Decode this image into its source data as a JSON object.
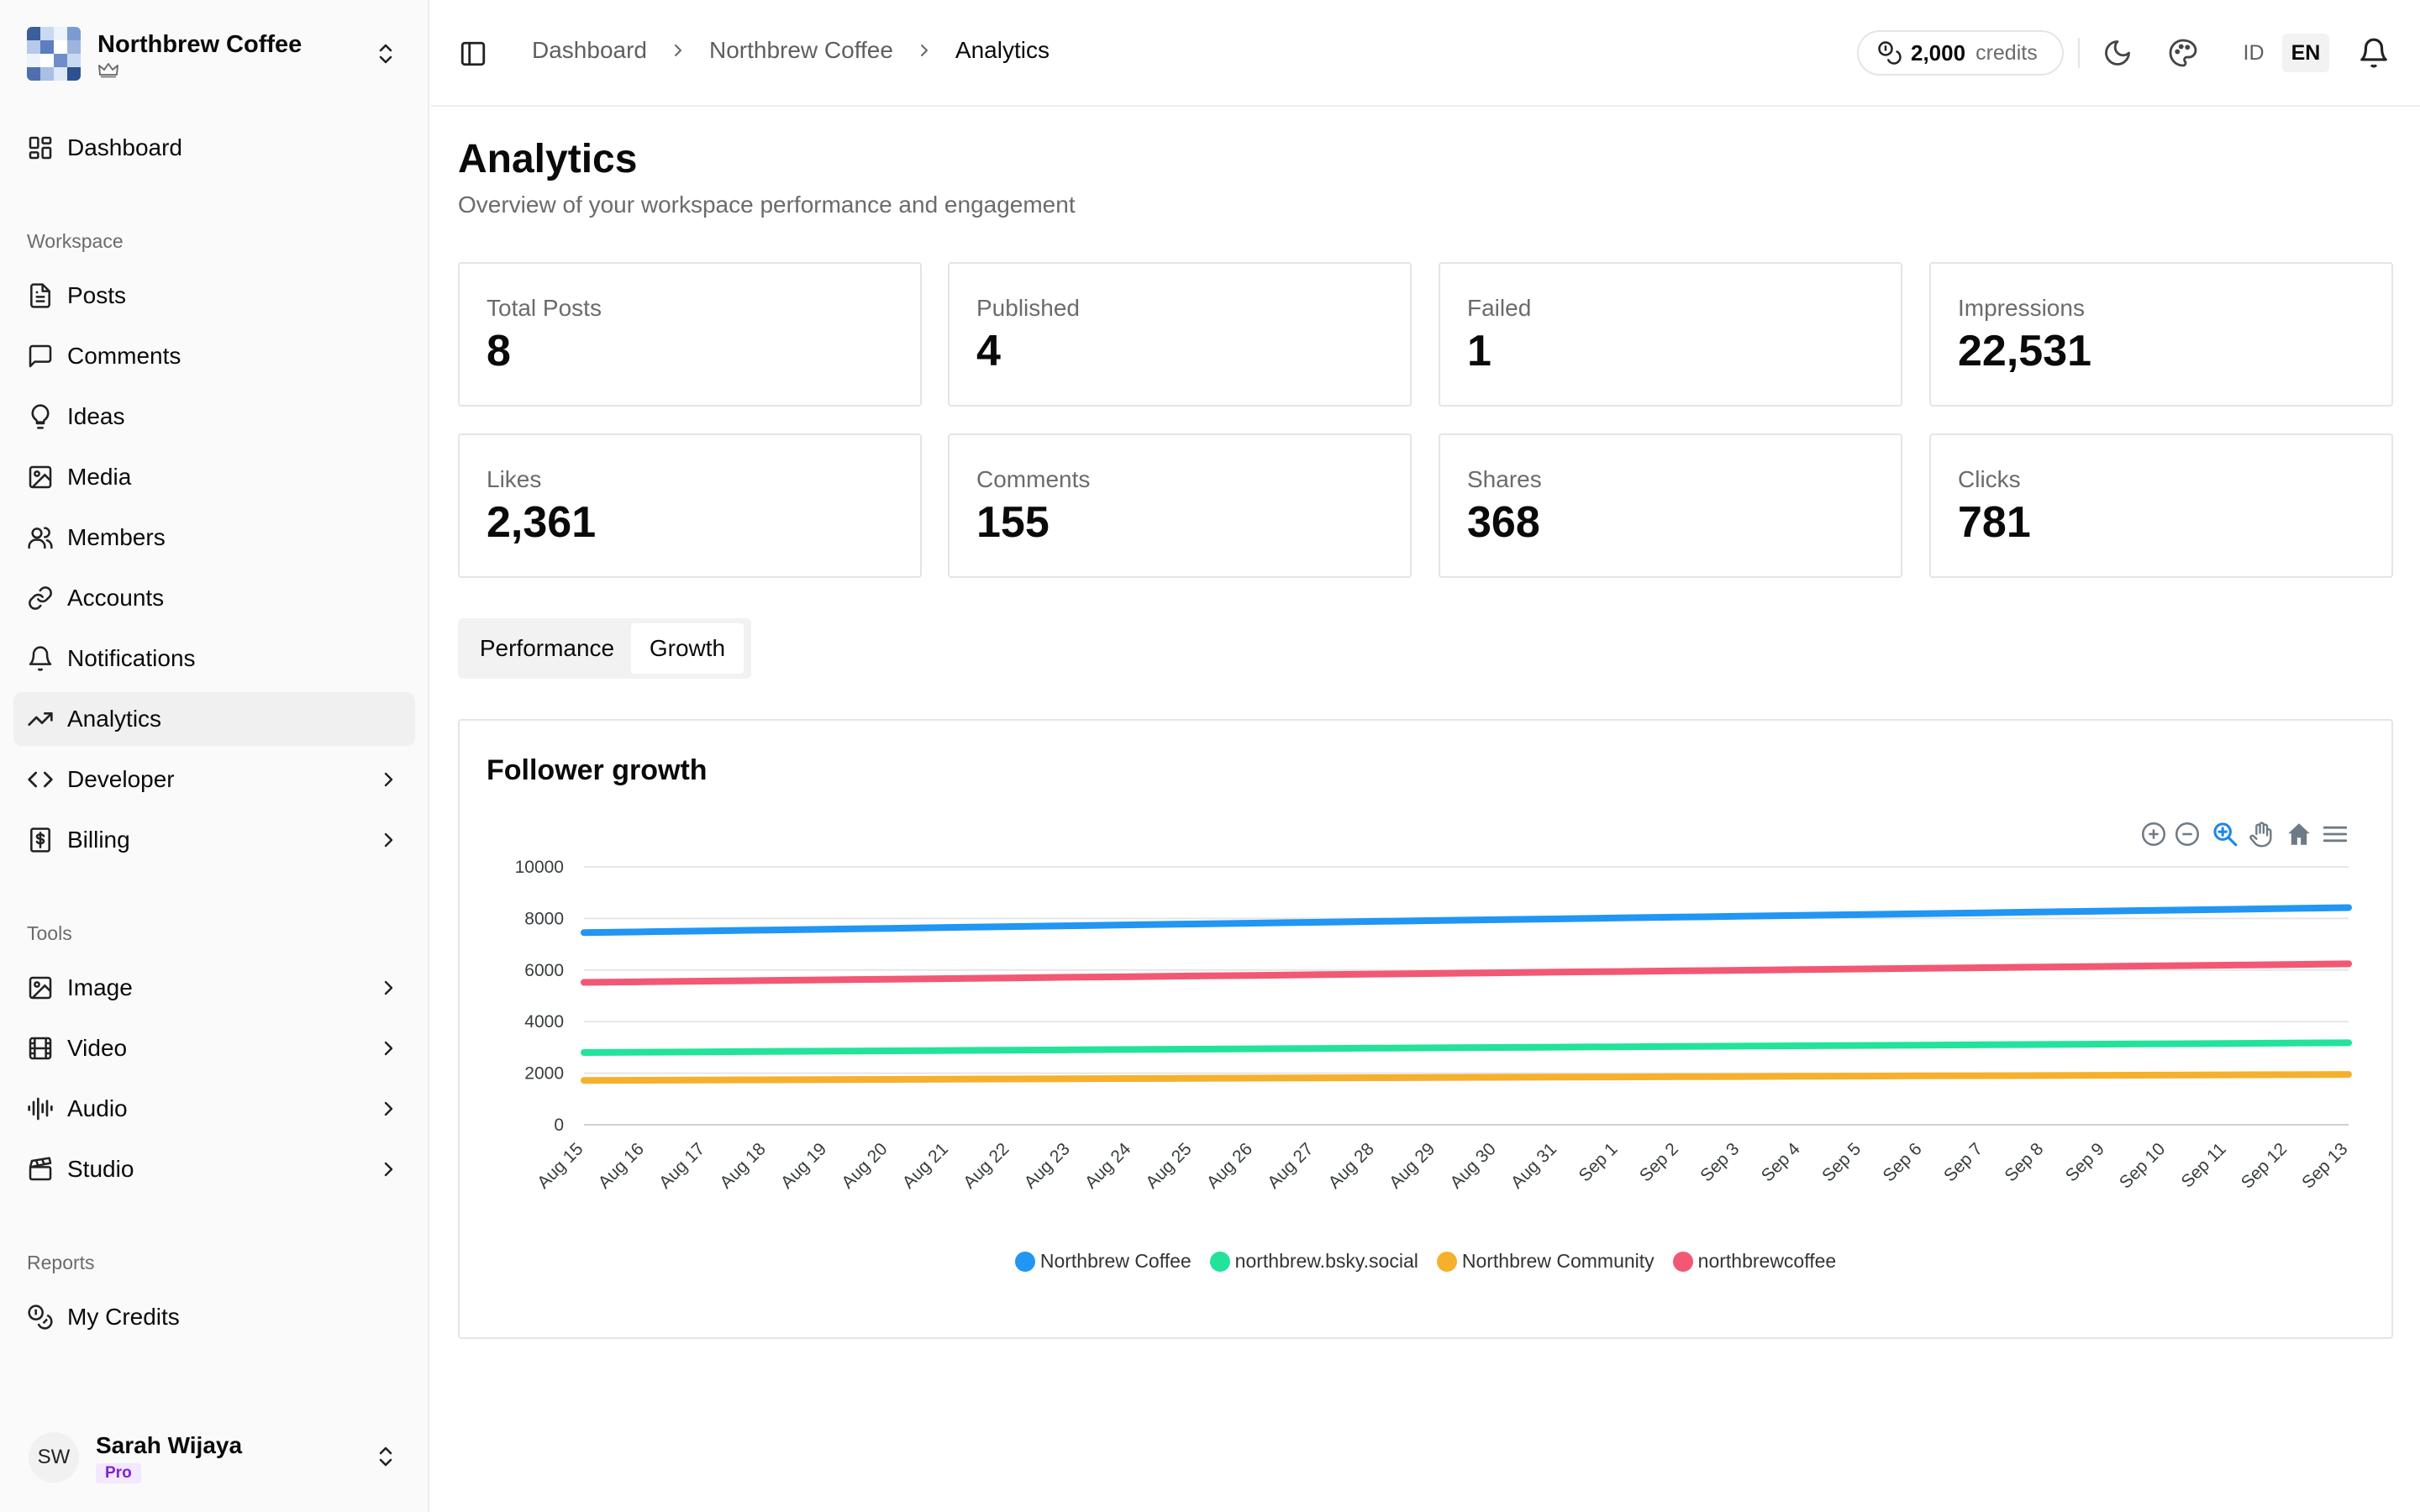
{
  "workspace": {
    "name": "Northbrew Coffee",
    "logo_colors": [
      "#3a5f99",
      "#c9d9f2",
      "#eef3fb",
      "#7a9cd1",
      "#b5c9ea",
      "#5b7fbf",
      "#ffffff",
      "#9db5de",
      "#eef3fb",
      "#ffffff",
      "#6e8ec8",
      "#c9d9f2",
      "#4f6fae",
      "#a9bfe6",
      "#dfe8f6",
      "#2f5190"
    ]
  },
  "sidebar": {
    "dashboard": "Dashboard",
    "sections": {
      "workspace": "Workspace",
      "tools": "Tools",
      "reports": "Reports"
    },
    "workspace_items": [
      {
        "label": "Posts",
        "icon": "file-text-icon"
      },
      {
        "label": "Comments",
        "icon": "message-square-icon"
      },
      {
        "label": "Ideas",
        "icon": "lightbulb-icon"
      },
      {
        "label": "Media",
        "icon": "image-icon"
      },
      {
        "label": "Members",
        "icon": "users-icon"
      },
      {
        "label": "Accounts",
        "icon": "link-icon"
      },
      {
        "label": "Notifications",
        "icon": "bell-icon"
      },
      {
        "label": "Analytics",
        "icon": "trending-up-icon",
        "active": true
      },
      {
        "label": "Developer",
        "icon": "code-icon",
        "expandable": true
      },
      {
        "label": "Billing",
        "icon": "receipt-dollar-icon",
        "expandable": true
      }
    ],
    "tool_items": [
      {
        "label": "Image",
        "icon": "image-icon"
      },
      {
        "label": "Video",
        "icon": "film-icon"
      },
      {
        "label": "Audio",
        "icon": "audio-lines-icon"
      },
      {
        "label": "Studio",
        "icon": "clapperboard-icon"
      }
    ],
    "report_items": [
      {
        "label": "My Credits",
        "icon": "coins-icon"
      }
    ],
    "user": {
      "initials": "SW",
      "name": "Sarah Wijaya",
      "plan": "Pro"
    }
  },
  "topbar": {
    "breadcrumb": [
      "Dashboard",
      "Northbrew Coffee",
      "Analytics"
    ],
    "credits_amount": "2,000",
    "credits_label": "credits",
    "languages": [
      "ID",
      "EN"
    ],
    "active_language": "EN"
  },
  "page": {
    "title": "Analytics",
    "subtitle": "Overview of your workspace performance and engagement"
  },
  "stats": [
    {
      "label": "Total Posts",
      "value": "8"
    },
    {
      "label": "Published",
      "value": "4"
    },
    {
      "label": "Failed",
      "value": "1"
    },
    {
      "label": "Impressions",
      "value": "22,531"
    },
    {
      "label": "Likes",
      "value": "2,361"
    },
    {
      "label": "Comments",
      "value": "155"
    },
    {
      "label": "Shares",
      "value": "368"
    },
    {
      "label": "Clicks",
      "value": "781"
    }
  ],
  "tabs": {
    "performance": "Performance",
    "growth": "Growth",
    "active": "Growth"
  },
  "chart_toolbar": [
    "zoom-in-icon",
    "zoom-out-icon",
    "zoom-selection-icon",
    "pan-hand-icon",
    "reset-home-icon",
    "menu-icon"
  ],
  "chart_data": {
    "type": "line",
    "title": "Follower growth",
    "xlabel": "",
    "ylabel": "",
    "ylim": [
      0,
      10000
    ],
    "yticks": [
      "10000",
      "8000",
      "6000",
      "4000",
      "2000",
      "0"
    ],
    "grid": true,
    "legend_position": "bottom",
    "categories": [
      "Aug 15",
      "Aug 16",
      "Aug 17",
      "Aug 18",
      "Aug 19",
      "Aug 20",
      "Aug 21",
      "Aug 22",
      "Aug 23",
      "Aug 24",
      "Aug 25",
      "Aug 26",
      "Aug 27",
      "Aug 28",
      "Aug 29",
      "Aug 30",
      "Aug 31",
      "Sep 1",
      "Sep 2",
      "Sep 3",
      "Sep 4",
      "Sep 5",
      "Sep 6",
      "Sep 7",
      "Sep 8",
      "Sep 9",
      "Sep 10",
      "Sep 11",
      "Sep 12",
      "Sep 13"
    ],
    "series": [
      {
        "name": "Northbrew Coffee",
        "color": "#2196f3",
        "start": 7450,
        "end": 8420
      },
      {
        "name": "northbrew.bsky.social",
        "color": "#22e39a",
        "start": 2800,
        "end": 3180
      },
      {
        "name": "Northbrew Community",
        "color": "#f5b12c",
        "start": 1720,
        "end": 1950
      },
      {
        "name": "northbrewcoffee",
        "color": "#f25874",
        "start": 5520,
        "end": 6240
      }
    ]
  }
}
